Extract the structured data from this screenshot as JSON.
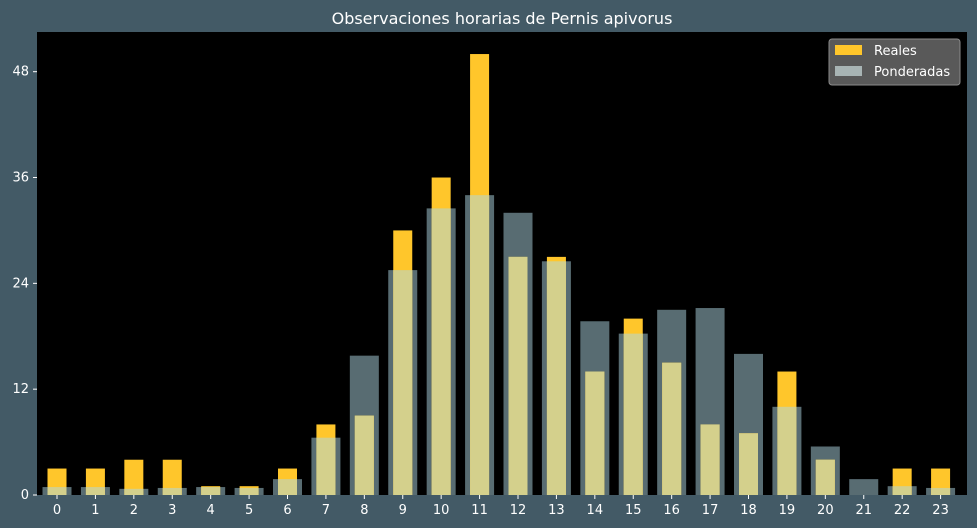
{
  "chart_data": {
    "type": "bar",
    "title": "Observaciones horarias de Pernis apivorus",
    "xlabel": "",
    "ylabel": "",
    "categories": [
      "0",
      "1",
      "2",
      "3",
      "4",
      "5",
      "6",
      "7",
      "8",
      "9",
      "10",
      "11",
      "12",
      "13",
      "14",
      "15",
      "16",
      "17",
      "18",
      "19",
      "20",
      "21",
      "22",
      "23"
    ],
    "series": [
      {
        "name": "Reales",
        "color": "#ffc62b",
        "values": [
          3,
          3,
          4,
          4,
          1,
          1,
          3,
          8,
          9,
          30,
          36,
          50,
          27,
          27,
          14,
          20,
          15,
          8,
          7,
          14,
          4,
          0,
          3,
          3
        ]
      },
      {
        "name": "Ponderadas",
        "color": "#a8b4b4",
        "values": [
          0.9,
          0.9,
          0.7,
          0.8,
          0.9,
          0.8,
          1.8,
          6.5,
          15.8,
          25.5,
          32.5,
          34,
          32,
          26.5,
          19.7,
          18.3,
          21,
          21.2,
          16,
          10,
          5.5,
          1.8,
          1,
          0.8
        ]
      }
    ],
    "yticks": [
      0,
      12,
      24,
      36,
      48
    ],
    "ylim": [
      0,
      52.5
    ],
    "grid": false,
    "legend": "top-right"
  }
}
